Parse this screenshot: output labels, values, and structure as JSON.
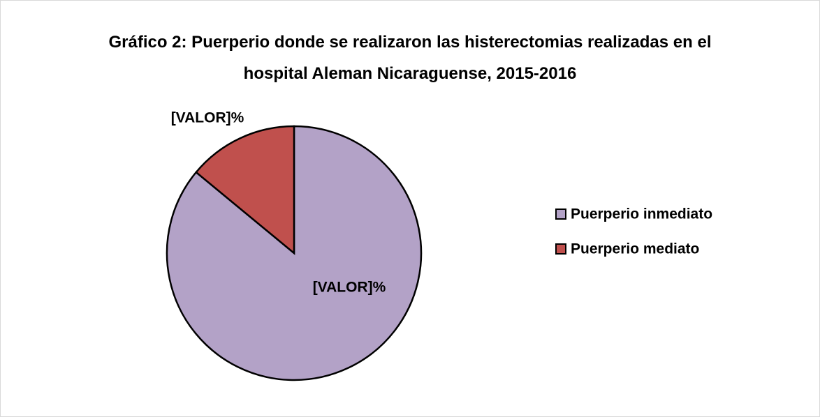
{
  "chart_data": {
    "type": "pie",
    "title": "Gráfico 2: Puerperio donde se realizaron las histerectomias realizadas en el hospital Aleman Nicaraguense, 2015-2016",
    "categories": [
      "Puerperio inmediato",
      "Puerperio mediato"
    ],
    "values": [
      86,
      14
    ],
    "value_labels": [
      "[VALOR]%",
      "[VALOR]%"
    ],
    "colors": [
      "#b3a2c7",
      "#c0504d"
    ],
    "legend": "right"
  }
}
